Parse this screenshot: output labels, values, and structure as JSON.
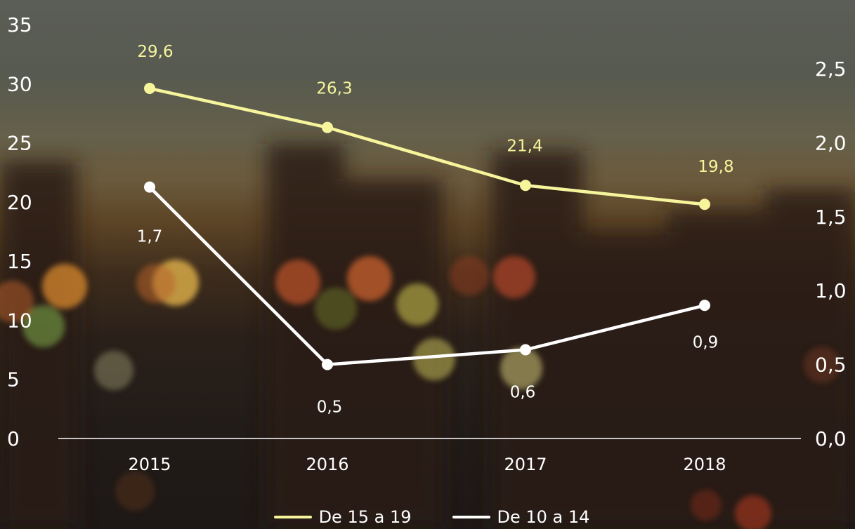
{
  "chart_data": {
    "type": "line",
    "categories": [
      "2015",
      "2016",
      "2017",
      "2018"
    ],
    "series": [
      {
        "name": "De 15 a 19",
        "axis": "left",
        "color": "#f7f59c",
        "values": [
          29.6,
          26.3,
          21.4,
          19.8
        ],
        "labels": [
          "29,6",
          "26,3",
          "21,4",
          "19,8"
        ]
      },
      {
        "name": "De 10 a 14",
        "axis": "right",
        "color": "#ffffff",
        "values": [
          1.7,
          0.5,
          0.6,
          0.9
        ],
        "labels": [
          "1,7",
          "0,5",
          "0,6",
          "0,9"
        ]
      }
    ],
    "y_left": {
      "ylim": [
        0,
        35
      ],
      "ticks": [
        "0",
        "5",
        "10",
        "15",
        "20",
        "25",
        "30",
        "35"
      ]
    },
    "y_right": {
      "ylim": [
        0,
        2.5
      ],
      "ticks": [
        "0,0",
        "0,5",
        "1,0",
        "1,5",
        "2,0",
        "2,5"
      ]
    },
    "title": "",
    "xlabel": "",
    "ylabel": "",
    "grid": false,
    "legend": "bottom-center"
  }
}
